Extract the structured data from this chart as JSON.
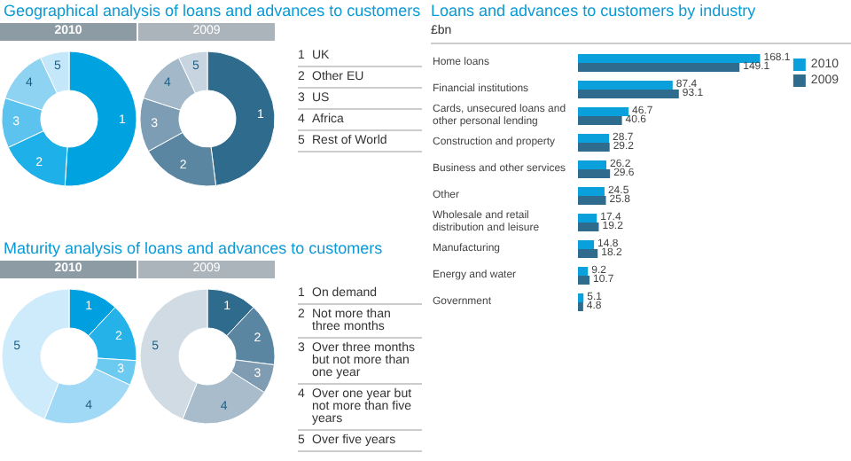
{
  "chart_data": [
    {
      "type": "donut",
      "title": "Geographical analysis of loans and advances to customers",
      "subtitle": "2010",
      "categories": [
        "1",
        "2",
        "3",
        "4",
        "5"
      ],
      "values": [
        51,
        17,
        12,
        13,
        7
      ],
      "colors": [
        "#00a3e0",
        "#1eb0e8",
        "#5cc3ee",
        "#8fd3f3",
        "#c4e8f9"
      ]
    },
    {
      "type": "donut",
      "subtitle": "2009",
      "categories": [
        "1",
        "2",
        "3",
        "4",
        "5"
      ],
      "values": [
        48,
        19,
        13,
        13,
        7
      ],
      "colors": [
        "#2e6b8c",
        "#5a86a2",
        "#7d9db4",
        "#a3b8c8",
        "#c8d5e0"
      ],
      "annotations": [
        "UK",
        "Other EU",
        "US",
        "Africa",
        "Rest of World"
      ]
    },
    {
      "type": "donut",
      "title": "Maturity analysis of loans and advances to customers",
      "subtitle": "2010",
      "categories": [
        "1",
        "2",
        "3",
        "4",
        "5"
      ],
      "values": [
        12,
        14,
        6,
        24,
        44
      ],
      "colors": [
        "#009fdf",
        "#24b2e9",
        "#6cc9f0",
        "#9fd9f5",
        "#cdebfa"
      ]
    },
    {
      "type": "donut",
      "subtitle": "2009",
      "categories": [
        "1",
        "2",
        "3",
        "4",
        "5"
      ],
      "values": [
        12,
        15,
        7,
        22,
        44
      ],
      "colors": [
        "#2e6b8c",
        "#5a86a2",
        "#7f9cb2",
        "#a8bccb",
        "#d0dbe4"
      ],
      "annotations": [
        "On demand",
        "Not more than three months",
        "Over three months but not more than one year",
        "Over one year but not more than five years",
        "Over five years"
      ]
    },
    {
      "type": "bar",
      "orientation": "horizontal",
      "title": "Loans and advances to customers by industry",
      "subtitle": "£bn",
      "categories": [
        "Home loans",
        "Financial institutions",
        "Cards, unsecured loans and other personal lending",
        "Construction and property",
        "Business and other services",
        "Other",
        "Wholesale and retail distribution and leisure",
        "Manufacturing",
        "Energy and water",
        "Government"
      ],
      "series": [
        {
          "name": "2010",
          "color": "#0aa0dc",
          "values": [
            168.1,
            87.4,
            46.7,
            28.7,
            26.2,
            24.5,
            17.4,
            14.8,
            9.2,
            5.1
          ]
        },
        {
          "name": "2009",
          "color": "#2e6b8c",
          "values": [
            149.1,
            93.1,
            40.6,
            29.2,
            29.6,
            25.8,
            19.2,
            18.2,
            10.7,
            4.8
          ]
        }
      ],
      "data_labels": true,
      "legend": "top right"
    }
  ]
}
